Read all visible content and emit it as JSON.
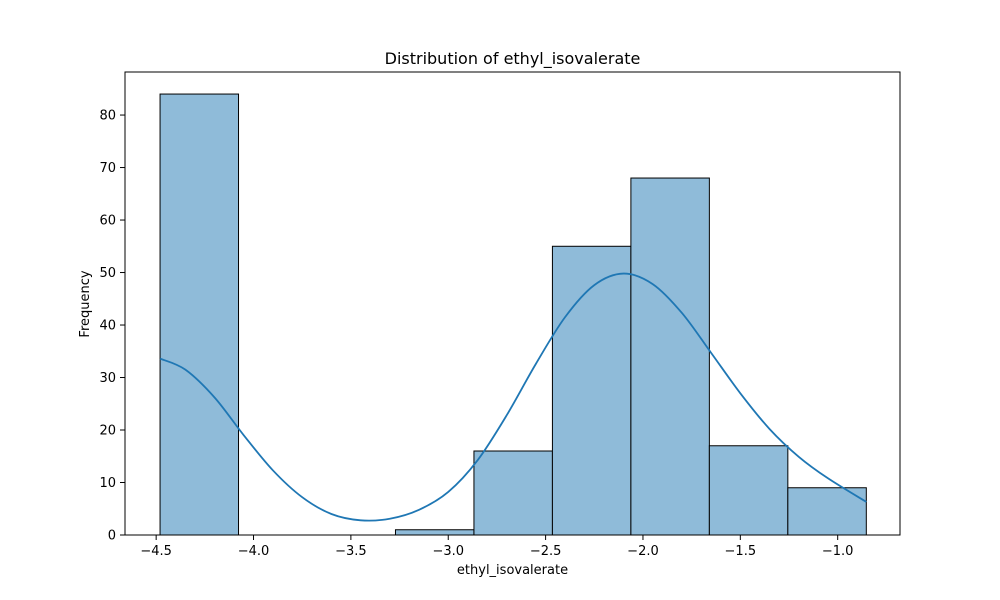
{
  "chart_data": {
    "type": "bar",
    "title": "Distribution of ethyl_isovalerate",
    "xlabel": "ethyl_isovalerate",
    "ylabel": "Frequency",
    "xlim": [
      -4.66,
      -0.68
    ],
    "ylim": [
      0,
      88.2
    ],
    "grid": false,
    "legend": "none",
    "bin_edges": [
      -4.48,
      -4.077,
      -3.674,
      -3.271,
      -2.868,
      -2.465,
      -2.062,
      -1.659,
      -1.256,
      -0.853
    ],
    "counts": [
      84,
      0,
      0,
      1,
      16,
      55,
      68,
      17,
      9
    ],
    "kde": {
      "x": [
        -4.48,
        -4.35,
        -4.2,
        -4.05,
        -3.9,
        -3.75,
        -3.6,
        -3.45,
        -3.3,
        -3.15,
        -3.0,
        -2.85,
        -2.7,
        -2.55,
        -2.4,
        -2.25,
        -2.1,
        -1.95,
        -1.8,
        -1.65,
        -1.5,
        -1.35,
        -1.2,
        -1.05,
        -0.853
      ],
      "y": [
        33.6,
        31.5,
        26.2,
        19.0,
        12.3,
        7.2,
        4.0,
        2.8,
        3.1,
        4.8,
        8.2,
        14.2,
        22.8,
        32.6,
        41.5,
        47.6,
        49.8,
        47.8,
        42.3,
        34.7,
        27.0,
        20.2,
        14.9,
        10.8,
        6.3
      ]
    },
    "xticks": [
      -4.5,
      -4.0,
      -3.5,
      -3.0,
      -2.5,
      -2.0,
      -1.5,
      -1.0
    ],
    "xtick_labels": [
      "−4.5",
      "−4.0",
      "−3.5",
      "−3.0",
      "−2.5",
      "−2.0",
      "−1.5",
      "−1.0"
    ],
    "yticks": [
      0,
      10,
      20,
      30,
      40,
      50,
      60,
      70,
      80
    ],
    "ytick_labels": [
      "0",
      "10",
      "20",
      "30",
      "40",
      "50",
      "60",
      "70",
      "80"
    ],
    "colors": {
      "bar_fill": "#8fbbd9",
      "bar_edge": "#000000",
      "kde_line": "#1f77b4"
    }
  }
}
